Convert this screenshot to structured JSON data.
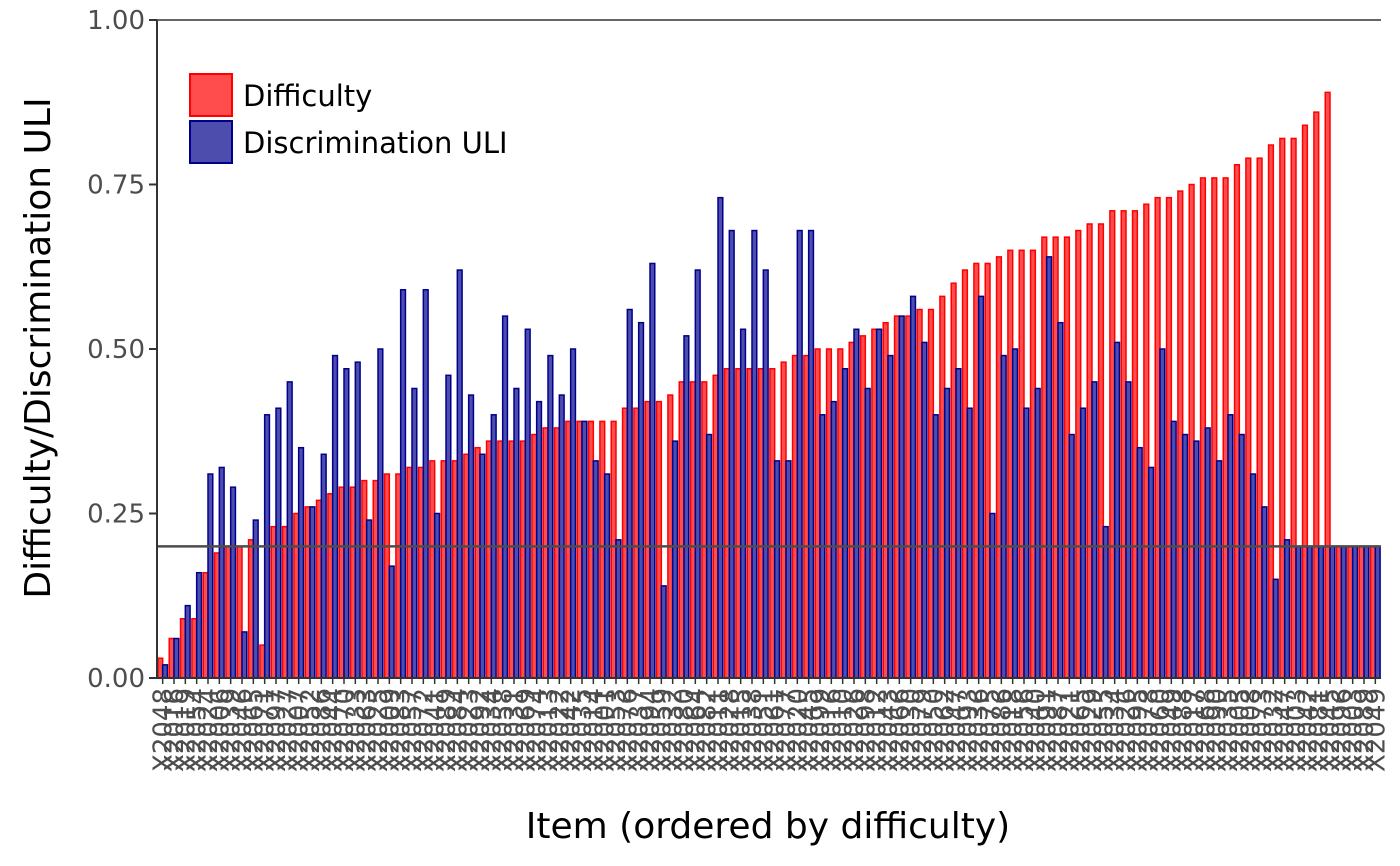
{
  "chart_data": {
    "type": "bar",
    "xlabel": "Item (ordered by difficulty)",
    "ylabel": "Difficulty/Discrimination ULI",
    "ylim": [
      0,
      1
    ],
    "yticks": [
      "0.00",
      "0.25",
      "0.50",
      "0.75",
      "1.00"
    ],
    "reference_line": 0.2,
    "legend_position": "top-left",
    "grid": false,
    "colors": {
      "difficulty_fill": "#ff4d4d",
      "difficulty_stroke": "#ff0000",
      "discrimination_fill": "#4d4dad",
      "discrimination_stroke": "#00008b",
      "reference_line": "#4d4d4d",
      "axis": "#333333"
    },
    "categories": [
      "X2048",
      "X2016",
      "X2019",
      "X2054",
      "X2024",
      "X2006",
      "X2039",
      "X2046",
      "X2065",
      "X2071",
      "X2097",
      "X2027",
      "X2007",
      "X2052",
      "X2086",
      "X2044",
      "X2070",
      "X2033",
      "X2063",
      "X2025",
      "X2009",
      "X2083",
      "X2057",
      "X2072",
      "X2041",
      "X2089",
      "X2084",
      "X2023",
      "X2092",
      "X2034",
      "X2058",
      "X2031",
      "X2069",
      "X2074",
      "X2013",
      "X2022",
      "X2042",
      "X2035",
      "X2014",
      "X2001",
      "X2053",
      "X2076",
      "X2037",
      "X2094",
      "X2059",
      "X2032",
      "X2080",
      "X2064",
      "X2082",
      "X2011",
      "X2028",
      "X2015",
      "X2038",
      "X2051",
      "X2061",
      "X2077",
      "X2020",
      "X2045",
      "X2099",
      "X2016",
      "X2010",
      "X2026",
      "X2098",
      "X2012",
      "X2043",
      "X2066",
      "X2030",
      "X2079",
      "X2050",
      "X2062",
      "X2047",
      "X2093",
      "X2036",
      "X2075",
      "X2086",
      "X2018",
      "X2056",
      "X2040",
      "X2091",
      "X2087",
      "X2021",
      "X2065",
      "X2029",
      "X2055",
      "X2034",
      "X2026",
      "X2095",
      "X2078",
      "X2060",
      "X2049",
      "X2088",
      "X2017",
      "X2068",
      "X2090",
      "X2035",
      "X2005",
      "X2008",
      "X2073",
      "X2032",
      "X2047",
      "X2003",
      "X2042",
      "X2081",
      "X2045",
      "X2096",
      "X2003",
      "X2089",
      "X2049"
    ],
    "series": [
      {
        "name": "Difficulty",
        "values": [
          0.03,
          0.06,
          0.09,
          0.09,
          0.16,
          0.19,
          0.2,
          0.2,
          0.21,
          0.05,
          0.23,
          0.23,
          0.25,
          0.26,
          0.27,
          0.28,
          0.29,
          0.29,
          0.3,
          0.3,
          0.31,
          0.31,
          0.32,
          0.32,
          0.33,
          0.33,
          0.33,
          0.34,
          0.35,
          0.36,
          0.36,
          0.36,
          0.36,
          0.37,
          0.38,
          0.38,
          0.39,
          0.39,
          0.39,
          0.39,
          0.39,
          0.41,
          0.41,
          0.42,
          0.42,
          0.43,
          0.45,
          0.45,
          0.45,
          0.46,
          0.47,
          0.47,
          0.47,
          0.47,
          0.47,
          0.48,
          0.49,
          0.49,
          0.5,
          0.5,
          0.5,
          0.51,
          0.52,
          0.53,
          0.54,
          0.55,
          0.55,
          0.56,
          0.56,
          0.58,
          0.6,
          0.62,
          0.63,
          0.63,
          0.64,
          0.65,
          0.65,
          0.65,
          0.67,
          0.67,
          0.67,
          0.68,
          0.69,
          0.69,
          0.71,
          0.71,
          0.71,
          0.72,
          0.73,
          0.73,
          0.74,
          0.75,
          0.76,
          0.76,
          0.76,
          0.78,
          0.79,
          0.79,
          0.81,
          0.82,
          0.82,
          0.84,
          0.86,
          0.89,
          0.2,
          0.2,
          0.2,
          0.2
        ]
      },
      {
        "name": "Discrimination ULI",
        "values": [
          0.02,
          0.06,
          0.11,
          0.16,
          0.31,
          0.32,
          0.29,
          0.07,
          0.24,
          0.4,
          0.41,
          0.45,
          0.35,
          0.26,
          0.34,
          0.49,
          0.47,
          0.48,
          0.24,
          0.5,
          0.17,
          0.59,
          0.44,
          0.59,
          0.25,
          0.46,
          0.62,
          0.43,
          0.34,
          0.4,
          0.55,
          0.44,
          0.53,
          0.42,
          0.49,
          0.43,
          0.5,
          0.39,
          0.33,
          0.31,
          0.21,
          0.56,
          0.54,
          0.63,
          0.14,
          0.36,
          0.52,
          0.62,
          0.37,
          0.73,
          0.68,
          0.53,
          0.68,
          0.62,
          0.33,
          0.33,
          0.68,
          0.68,
          0.4,
          0.42,
          0.47,
          0.53,
          0.44,
          0.53,
          0.49,
          0.55,
          0.58,
          0.51,
          0.4,
          0.44,
          0.47,
          0.41,
          0.58,
          0.25,
          0.49,
          0.5,
          0.41,
          0.44,
          0.64,
          0.54,
          0.37,
          0.41,
          0.45,
          0.23,
          0.51,
          0.45,
          0.35,
          0.32,
          0.5,
          0.39,
          0.37,
          0.36,
          0.38,
          0.33,
          0.4,
          0.37,
          0.31,
          0.26,
          0.15,
          0.21,
          0.2,
          0.2,
          0.2,
          0.2,
          0.2,
          0.2,
          0.2,
          0.2
        ]
      }
    ]
  }
}
